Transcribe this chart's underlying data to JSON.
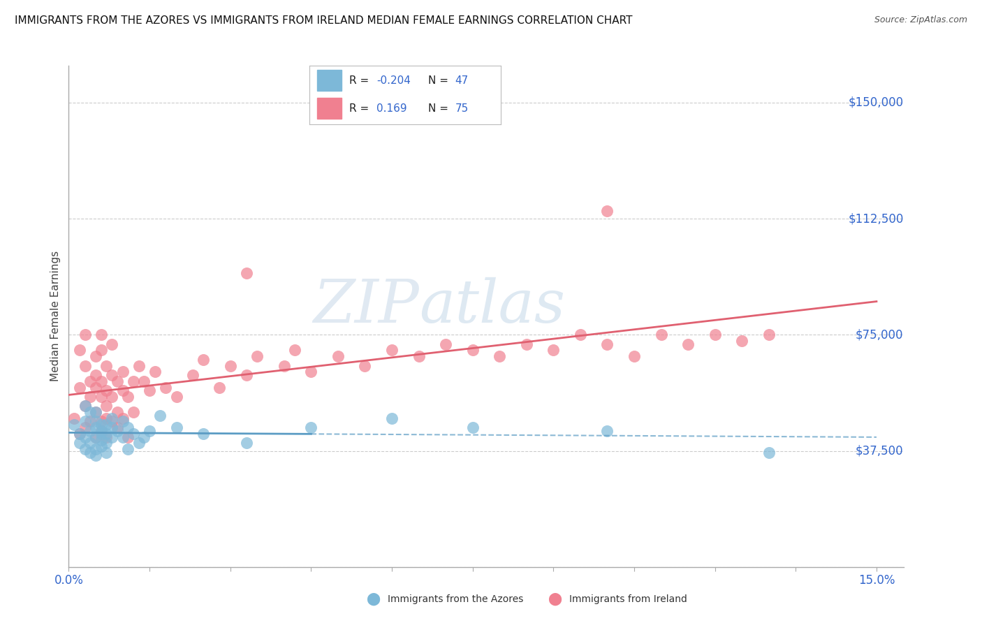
{
  "title": "IMMIGRANTS FROM THE AZORES VS IMMIGRANTS FROM IRELAND MEDIAN FEMALE EARNINGS CORRELATION CHART",
  "source": "Source: ZipAtlas.com",
  "ylabel": "Median Female Earnings",
  "xlim": [
    0.0,
    0.155
  ],
  "ylim": [
    0,
    162000
  ],
  "yticks": [
    0,
    37500,
    75000,
    112500,
    150000
  ],
  "ytick_labels": [
    "",
    "$37,500",
    "$75,000",
    "$112,500",
    "$150,000"
  ],
  "legend_r_azores": "-0.204",
  "legend_n_azores": "47",
  "legend_r_ireland": "0.169",
  "legend_n_ireland": "75",
  "color_azores": "#7db8d8",
  "color_ireland": "#f08090",
  "color_azores_line": "#5b9cc4",
  "color_ireland_line": "#e06070",
  "color_blue_text": "#3366cc",
  "color_grid": "#cccccc",
  "azores_x": [
    0.001,
    0.002,
    0.002,
    0.003,
    0.003,
    0.003,
    0.003,
    0.004,
    0.004,
    0.004,
    0.004,
    0.005,
    0.005,
    0.005,
    0.005,
    0.005,
    0.005,
    0.006,
    0.006,
    0.006,
    0.006,
    0.006,
    0.007,
    0.007,
    0.007,
    0.007,
    0.008,
    0.008,
    0.008,
    0.009,
    0.01,
    0.01,
    0.011,
    0.011,
    0.012,
    0.013,
    0.014,
    0.015,
    0.017,
    0.02,
    0.025,
    0.033,
    0.045,
    0.06,
    0.075,
    0.1,
    0.13
  ],
  "azores_y": [
    46000,
    40000,
    43000,
    38000,
    42000,
    47000,
    52000,
    37000,
    44000,
    50000,
    40000,
    45000,
    38000,
    47000,
    42000,
    36000,
    50000,
    44000,
    41000,
    46000,
    39000,
    43000,
    46000,
    40000,
    43000,
    37000,
    48000,
    42000,
    45000,
    44000,
    42000,
    47000,
    38000,
    45000,
    43000,
    40000,
    42000,
    44000,
    49000,
    45000,
    43000,
    40000,
    45000,
    48000,
    45000,
    44000,
    37000
  ],
  "ireland_x": [
    0.001,
    0.002,
    0.002,
    0.002,
    0.003,
    0.003,
    0.003,
    0.003,
    0.004,
    0.004,
    0.004,
    0.005,
    0.005,
    0.005,
    0.005,
    0.005,
    0.006,
    0.006,
    0.006,
    0.006,
    0.006,
    0.006,
    0.007,
    0.007,
    0.007,
    0.007,
    0.007,
    0.008,
    0.008,
    0.008,
    0.008,
    0.009,
    0.009,
    0.009,
    0.01,
    0.01,
    0.01,
    0.011,
    0.011,
    0.012,
    0.012,
    0.013,
    0.014,
    0.015,
    0.016,
    0.018,
    0.02,
    0.023,
    0.025,
    0.028,
    0.03,
    0.033,
    0.035,
    0.04,
    0.042,
    0.045,
    0.05,
    0.055,
    0.06,
    0.065,
    0.07,
    0.075,
    0.08,
    0.085,
    0.09,
    0.095,
    0.1,
    0.105,
    0.11,
    0.115,
    0.12,
    0.125,
    0.13,
    0.033,
    0.1
  ],
  "ireland_y": [
    48000,
    58000,
    43000,
    70000,
    52000,
    45000,
    65000,
    75000,
    60000,
    47000,
    55000,
    62000,
    42000,
    68000,
    50000,
    58000,
    55000,
    47000,
    70000,
    44000,
    60000,
    75000,
    52000,
    48000,
    65000,
    57000,
    42000,
    62000,
    47000,
    55000,
    72000,
    50000,
    60000,
    45000,
    63000,
    48000,
    57000,
    55000,
    42000,
    60000,
    50000,
    65000,
    60000,
    57000,
    63000,
    58000,
    55000,
    62000,
    67000,
    58000,
    65000,
    62000,
    68000,
    65000,
    70000,
    63000,
    68000,
    65000,
    70000,
    68000,
    72000,
    70000,
    68000,
    72000,
    70000,
    75000,
    72000,
    68000,
    75000,
    72000,
    75000,
    73000,
    75000,
    95000,
    115000
  ]
}
